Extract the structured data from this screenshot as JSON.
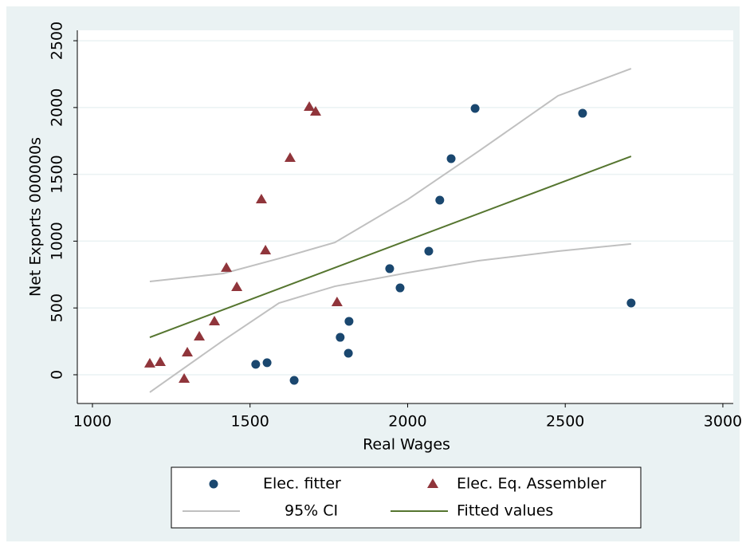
{
  "chart_data": {
    "type": "scatter",
    "xlabel": "Real Wages",
    "ylabel": "Net Exports 000000s",
    "xlim": [
      952,
      3033
    ],
    "ylim": [
      -215,
      2578
    ],
    "xticks": [
      1000,
      1500,
      2000,
      2500,
      3000
    ],
    "yticks": [
      0,
      500,
      1000,
      1500,
      2000,
      2500
    ],
    "grid": true,
    "legend": "bottom",
    "series": [
      {
        "name": "Elec. fitter",
        "type": "scatter",
        "marker": "circle",
        "color": "#1a476f",
        "x": [
          1518,
          1554,
          1640,
          1786,
          1812,
          1814,
          1943,
          1976,
          2067,
          2102,
          2138,
          2214,
          2555,
          2709
        ],
        "values": [
          78,
          90,
          -42,
          280,
          161,
          400,
          794,
          650,
          925,
          1307,
          1617,
          1993,
          1957,
          537
        ]
      },
      {
        "name": "Elec. Eq. Assembler",
        "type": "scatter",
        "marker": "triangle",
        "color": "#90353b",
        "x": [
          1182,
          1215,
          1291,
          1301,
          1339,
          1387,
          1425,
          1458,
          1536,
          1549,
          1627,
          1688,
          1708,
          1776
        ],
        "values": [
          84,
          95,
          -30,
          167,
          286,
          400,
          800,
          656,
          1313,
          931,
          1623,
          2005,
          1969,
          543
        ]
      },
      {
        "name": "95% CI",
        "type": "band",
        "color": "#c0c0c0",
        "x": [
          1182,
          1415,
          1592,
          1769,
          2001,
          2224,
          2477,
          2709
        ],
        "upper": [
          698,
          758,
          870,
          990,
          1313,
          1671,
          2088,
          2291
        ],
        "lower": [
          -131,
          257,
          537,
          662,
          764,
          853,
          925,
          979
        ]
      },
      {
        "name": "Fitted values",
        "type": "line",
        "color": "#55752f",
        "x": [
          1182,
          2709
        ],
        "values": [
          280,
          1635
        ]
      }
    ]
  }
}
